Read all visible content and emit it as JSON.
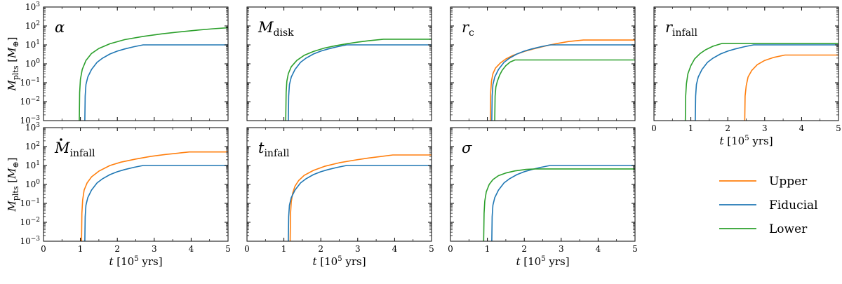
{
  "colors": {
    "Upper": "#ff7f0e",
    "Fiducial": "#1f77b4",
    "Lower": "#2ca02c"
  },
  "axes": {
    "x_tick_labels": [
      "0",
      "1",
      "2",
      "3",
      "4",
      "5"
    ],
    "y_tick_base": "10",
    "y_tick_exponents": [
      "−3",
      "−2",
      "−1",
      "0",
      "1",
      "2",
      "3"
    ],
    "ylabel_main": "M",
    "ylabel_sub": "plts",
    "ylabel_unit_open": " [",
    "ylabel_unit": "M",
    "ylabel_unit_sub": "⊕",
    "ylabel_unit_close": "]",
    "xlabel_main": "t",
    "xlabel_unit_open": " [10",
    "xlabel_unit_sup": "5",
    "xlabel_unit_close": " yrs]"
  },
  "legend": {
    "entries": [
      "Upper",
      "Fiducial",
      "Lower"
    ]
  },
  "chart_data": [
    {
      "type": "line",
      "title_main": "α",
      "title_sub": "",
      "title_dot": false,
      "xlim": [
        0,
        5
      ],
      "ylim": [
        0.001,
        1000
      ],
      "yscale": "log",
      "series": [
        {
          "name": "Fiducial",
          "x": [
            1.12,
            1.13,
            1.15,
            1.2,
            1.3,
            1.45,
            1.6,
            1.8,
            2.0,
            2.2,
            2.45,
            2.7,
            5.0
          ],
          "y": [
            0.001,
            0.02,
            0.08,
            0.2,
            0.5,
            1.2,
            2.0,
            3.3,
            4.7,
            6.1,
            8.0,
            10.0,
            10.0
          ]
        },
        {
          "name": "Lower",
          "x": [
            0.97,
            0.98,
            1.0,
            1.05,
            1.15,
            1.3,
            1.5,
            1.8,
            2.2,
            2.7,
            3.2,
            3.7,
            4.2,
            4.6,
            5.0
          ],
          "y": [
            0.001,
            0.03,
            0.15,
            0.5,
            1.5,
            3.5,
            6.5,
            11.5,
            19.0,
            28.0,
            38.0,
            49.0,
            61.0,
            71.0,
            80.0
          ]
        }
      ]
    },
    {
      "type": "line",
      "title_main": "M",
      "title_sub": "disk",
      "title_dot": false,
      "xlim": [
        0,
        5
      ],
      "ylim": [
        0.001,
        1000
      ],
      "yscale": "log",
      "series": [
        {
          "name": "Fiducial",
          "x": [
            1.12,
            1.13,
            1.15,
            1.2,
            1.3,
            1.45,
            1.6,
            1.8,
            2.0,
            2.2,
            2.45,
            2.7,
            5.0
          ],
          "y": [
            0.001,
            0.02,
            0.08,
            0.2,
            0.5,
            1.2,
            2.0,
            3.3,
            4.7,
            6.1,
            8.0,
            10.0,
            10.0
          ]
        },
        {
          "name": "Lower",
          "x": [
            1.05,
            1.06,
            1.08,
            1.12,
            1.2,
            1.35,
            1.55,
            1.8,
            2.1,
            2.4,
            2.7,
            3.0,
            3.3,
            3.7,
            5.0
          ],
          "y": [
            0.001,
            0.03,
            0.12,
            0.3,
            0.7,
            1.5,
            2.8,
            4.5,
            6.8,
            9.0,
            11.5,
            14.0,
            16.5,
            20.0,
            20.0
          ]
        }
      ]
    },
    {
      "type": "line",
      "title_main": "r",
      "title_sub": "c",
      "title_dot": false,
      "xlim": [
        0,
        5
      ],
      "ylim": [
        0.001,
        1000
      ],
      "yscale": "log",
      "series": [
        {
          "name": "Upper",
          "x": [
            1.08,
            1.09,
            1.11,
            1.15,
            1.22,
            1.35,
            1.5,
            1.7,
            2.0,
            2.3,
            2.6,
            2.9,
            3.2,
            3.6,
            5.0
          ],
          "y": [
            0.001,
            0.03,
            0.12,
            0.3,
            0.6,
            1.1,
            1.8,
            2.8,
            4.5,
            6.5,
            9.0,
            12.0,
            15.0,
            18.0,
            18.0
          ]
        },
        {
          "name": "Fiducial",
          "x": [
            1.12,
            1.13,
            1.15,
            1.2,
            1.3,
            1.45,
            1.6,
            1.8,
            2.0,
            2.2,
            2.45,
            2.7,
            5.0
          ],
          "y": [
            0.001,
            0.02,
            0.08,
            0.2,
            0.5,
            1.2,
            2.0,
            3.3,
            4.7,
            6.1,
            8.0,
            10.0,
            10.0
          ]
        },
        {
          "name": "Lower",
          "x": [
            1.2,
            1.21,
            1.23,
            1.27,
            1.33,
            1.4,
            1.5,
            1.62,
            1.75,
            5.0
          ],
          "y": [
            0.001,
            0.02,
            0.06,
            0.12,
            0.25,
            0.45,
            0.8,
            1.25,
            1.6,
            1.6
          ]
        }
      ]
    },
    {
      "type": "line",
      "title_main": "r",
      "title_sub": "infall",
      "title_dot": false,
      "xlim": [
        0,
        5
      ],
      "ylim": [
        0.001,
        1000
      ],
      "yscale": "log",
      "series": [
        {
          "name": "Upper",
          "x": [
            2.46,
            2.47,
            2.5,
            2.55,
            2.65,
            2.8,
            3.0,
            3.25,
            3.55,
            5.0
          ],
          "y": [
            0.001,
            0.02,
            0.07,
            0.2,
            0.45,
            0.9,
            1.5,
            2.2,
            2.9,
            2.9
          ]
        },
        {
          "name": "Fiducial",
          "x": [
            1.12,
            1.13,
            1.15,
            1.2,
            1.3,
            1.45,
            1.6,
            1.8,
            2.0,
            2.2,
            2.45,
            2.7,
            5.0
          ],
          "y": [
            0.001,
            0.02,
            0.08,
            0.2,
            0.5,
            1.2,
            2.0,
            3.3,
            4.7,
            6.1,
            8.0,
            10.0,
            10.0
          ]
        },
        {
          "name": "Lower",
          "x": [
            0.85,
            0.86,
            0.88,
            0.92,
            1.0,
            1.1,
            1.25,
            1.4,
            1.6,
            1.85,
            5.0
          ],
          "y": [
            0.001,
            0.02,
            0.09,
            0.3,
            0.8,
            1.8,
            3.5,
            5.5,
            8.5,
            12.0,
            12.0
          ]
        }
      ]
    },
    {
      "type": "line",
      "title_main": "M",
      "title_sub": "infall",
      "title_dot": true,
      "xlim": [
        0,
        5
      ],
      "ylim": [
        0.001,
        1000
      ],
      "yscale": "log",
      "series": [
        {
          "name": "Upper",
          "x": [
            1.03,
            1.04,
            1.06,
            1.1,
            1.18,
            1.3,
            1.5,
            1.8,
            2.1,
            2.5,
            2.9,
            3.3,
            3.7,
            3.95,
            5.0
          ],
          "y": [
            0.001,
            0.03,
            0.15,
            0.5,
            1.2,
            2.5,
            5.0,
            10.0,
            15.0,
            22.0,
            30.0,
            38.0,
            46.0,
            52.0,
            52.0
          ]
        },
        {
          "name": "Fiducial",
          "x": [
            1.12,
            1.13,
            1.15,
            1.2,
            1.3,
            1.45,
            1.6,
            1.8,
            2.0,
            2.2,
            2.45,
            2.7,
            5.0
          ],
          "y": [
            0.001,
            0.02,
            0.08,
            0.2,
            0.5,
            1.2,
            2.0,
            3.3,
            4.7,
            6.1,
            8.0,
            10.0,
            10.0
          ]
        }
      ]
    },
    {
      "type": "line",
      "title_main": "t",
      "title_sub": "infall",
      "title_dot": false,
      "xlim": [
        0,
        5
      ],
      "ylim": [
        0.001,
        1000
      ],
      "yscale": "log",
      "series": [
        {
          "name": "Upper",
          "x": [
            1.17,
            1.18,
            1.2,
            1.24,
            1.3,
            1.4,
            1.55,
            1.8,
            2.1,
            2.5,
            2.9,
            3.3,
            3.7,
            3.95,
            5.0
          ],
          "y": [
            0.001,
            0.03,
            0.12,
            0.35,
            0.8,
            1.6,
            3.0,
            5.5,
            9.0,
            14.0,
            19.0,
            25.0,
            31.0,
            36.0,
            36.0
          ]
        },
        {
          "name": "Fiducial",
          "x": [
            1.12,
            1.13,
            1.15,
            1.2,
            1.3,
            1.45,
            1.6,
            1.8,
            2.0,
            2.2,
            2.45,
            2.7,
            5.0
          ],
          "y": [
            0.001,
            0.02,
            0.08,
            0.2,
            0.5,
            1.2,
            2.0,
            3.3,
            4.7,
            6.1,
            8.0,
            10.0,
            10.0
          ]
        }
      ]
    },
    {
      "type": "line",
      "title_main": "σ",
      "title_sub": "",
      "title_dot": false,
      "xlim": [
        0,
        5
      ],
      "ylim": [
        0.001,
        1000
      ],
      "yscale": "log",
      "series": [
        {
          "name": "Fiducial",
          "x": [
            1.12,
            1.13,
            1.15,
            1.2,
            1.3,
            1.45,
            1.6,
            1.8,
            2.0,
            2.2,
            2.45,
            2.7,
            5.0
          ],
          "y": [
            0.001,
            0.02,
            0.08,
            0.2,
            0.5,
            1.2,
            2.0,
            3.3,
            4.7,
            6.1,
            8.0,
            10.0,
            10.0
          ]
        },
        {
          "name": "Lower",
          "x": [
            0.9,
            0.91,
            0.93,
            0.97,
            1.05,
            1.15,
            1.3,
            1.5,
            1.75,
            2.05,
            2.3,
            5.0
          ],
          "y": [
            0.001,
            0.03,
            0.13,
            0.4,
            1.0,
            1.8,
            2.9,
            4.0,
            5.2,
            6.2,
            6.6,
            6.6
          ]
        }
      ]
    }
  ]
}
